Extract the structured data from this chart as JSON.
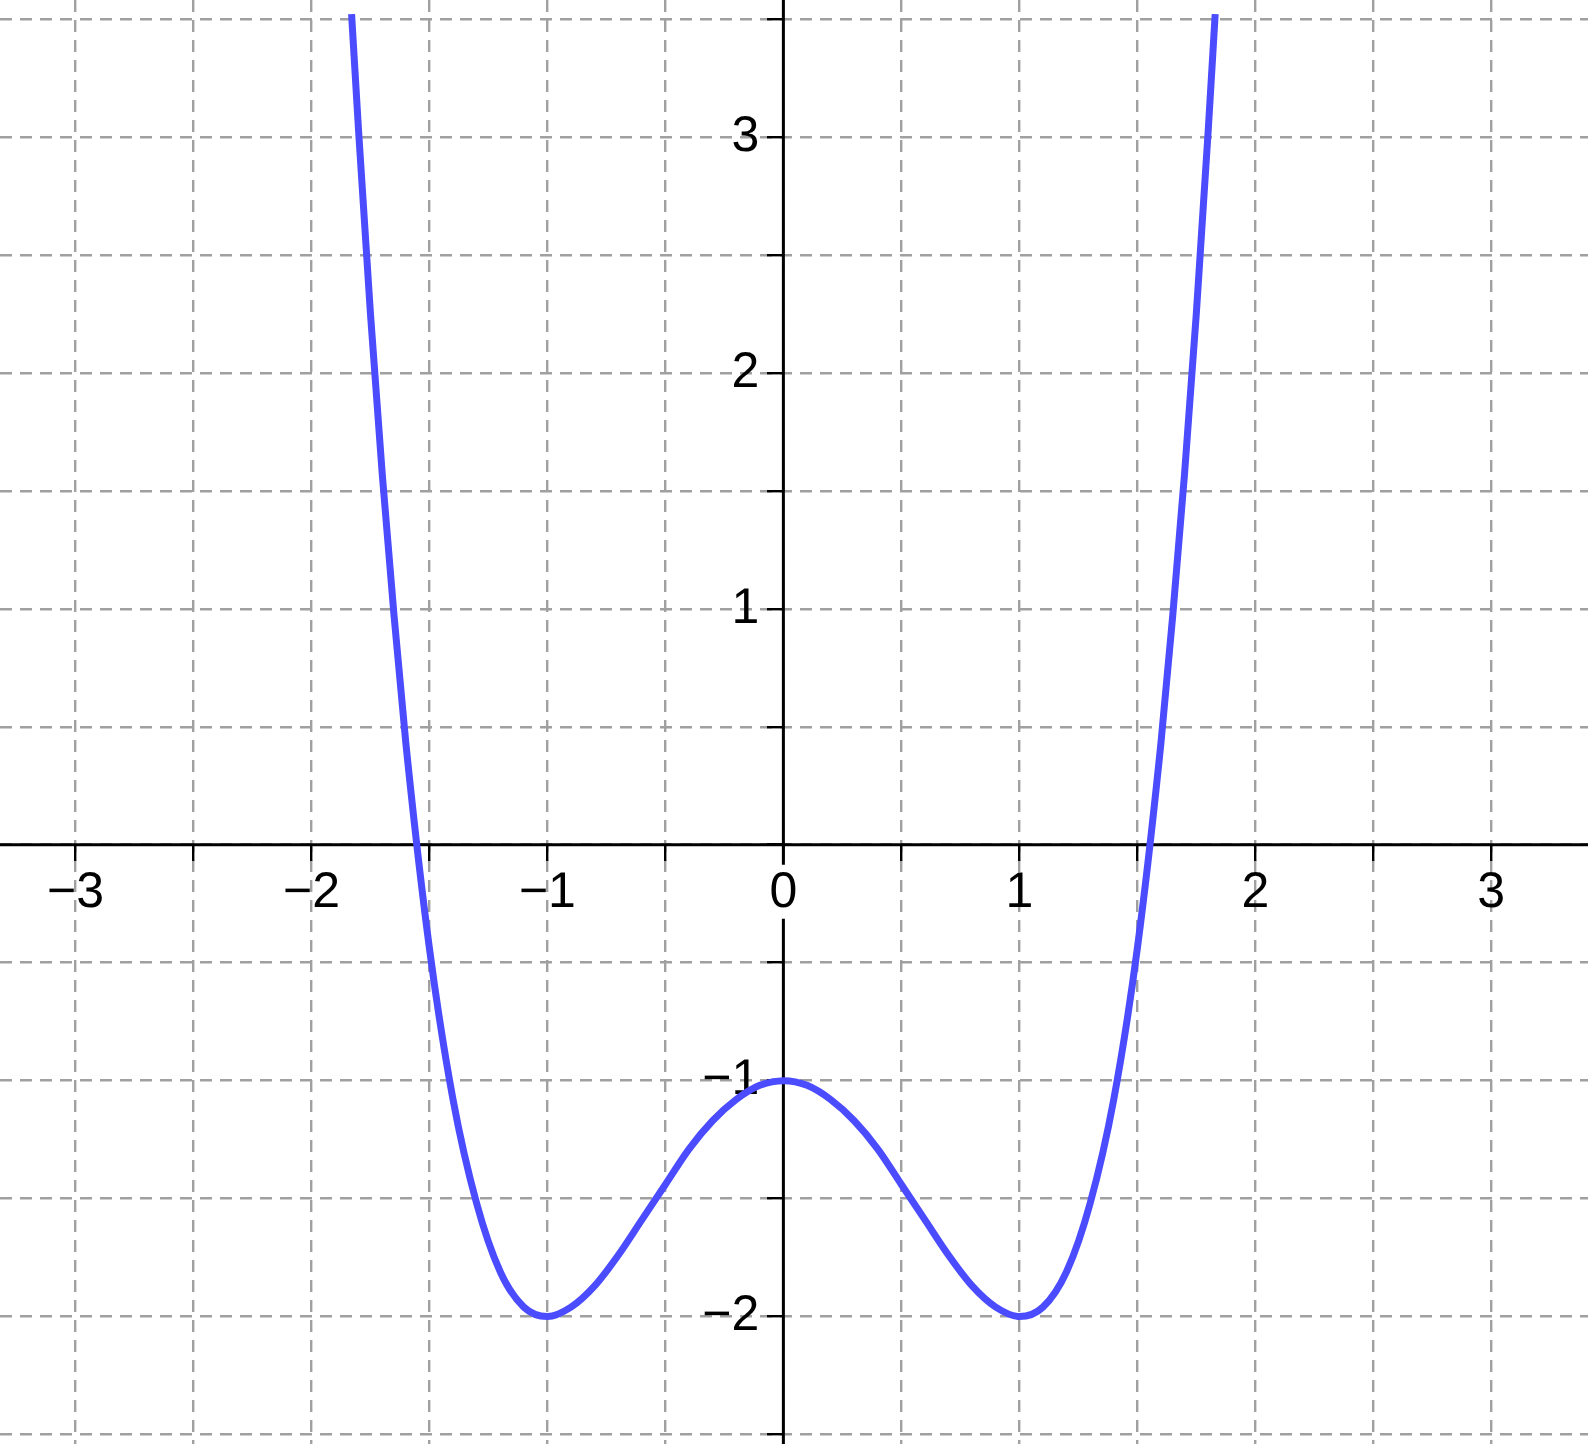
{
  "chart_data": {
    "type": "line",
    "x": [
      -1.83,
      -1.8,
      -1.75,
      -1.7,
      -1.65,
      -1.6,
      -1.5,
      -1.4,
      -1.3,
      -1.2,
      -1.1,
      -1.0,
      -0.9,
      -0.8,
      -0.7,
      -0.6,
      -0.5,
      -0.4,
      -0.3,
      -0.2,
      -0.1,
      0,
      0.1,
      0.2,
      0.3,
      0.4,
      0.5,
      0.6,
      0.7,
      0.8,
      0.9,
      1.0,
      1.1,
      1.2,
      1.3,
      1.4,
      1.5,
      1.6,
      1.65,
      1.7,
      1.75,
      1.8,
      1.83
    ],
    "series": [
      {
        "color": "#4b4bff",
        "values": [
          3.52,
          3.02,
          2.25,
          1.57,
          0.97,
          0.43,
          -0.44,
          -1.08,
          -1.52,
          -1.81,
          -1.96,
          -2,
          -1.96,
          -1.87,
          -1.74,
          -1.59,
          -1.44,
          -1.29,
          -1.17,
          -1.08,
          -1.02,
          -1,
          -1.02,
          -1.08,
          -1.17,
          -1.29,
          -1.44,
          -1.59,
          -1.74,
          -1.87,
          -1.96,
          -2,
          -1.96,
          -1.81,
          -1.52,
          -1.08,
          -0.44,
          0.43,
          0.97,
          1.57,
          2.25,
          3.02,
          3.52
        ]
      }
    ],
    "xlim": [
      -3.32,
      3.41
    ],
    "ylim": [
      -2.54,
      3.58
    ],
    "xticks": [
      {
        "value": -3,
        "label": "−3"
      },
      {
        "value": -2.5,
        "label": null
      },
      {
        "value": -2,
        "label": "−2"
      },
      {
        "value": -1.5,
        "label": null
      },
      {
        "value": -1,
        "label": "−1"
      },
      {
        "value": -0.5,
        "label": null
      },
      {
        "value": 0,
        "label": "0"
      },
      {
        "value": 0.5,
        "label": null
      },
      1,
      {
        "value": 1.5,
        "label": null
      },
      2,
      {
        "value": 2.5,
        "label": null
      },
      3
    ],
    "yticks": [
      {
        "value": -2.5,
        "label": null
      },
      {
        "value": -2,
        "label": "−2"
      },
      {
        "value": -1.5,
        "label": null
      },
      {
        "value": -1,
        "label": "−1"
      },
      {
        "value": -0.5,
        "label": null
      },
      {
        "value": 0,
        "label": null
      },
      {
        "value": 0.5,
        "label": null
      },
      1,
      {
        "value": 1.5,
        "label": null
      },
      2,
      {
        "value": 2.5,
        "label": null
      },
      3,
      {
        "value": 3.5,
        "label": null
      }
    ],
    "grid": true,
    "marker": "none",
    "line_style": "solid"
  }
}
